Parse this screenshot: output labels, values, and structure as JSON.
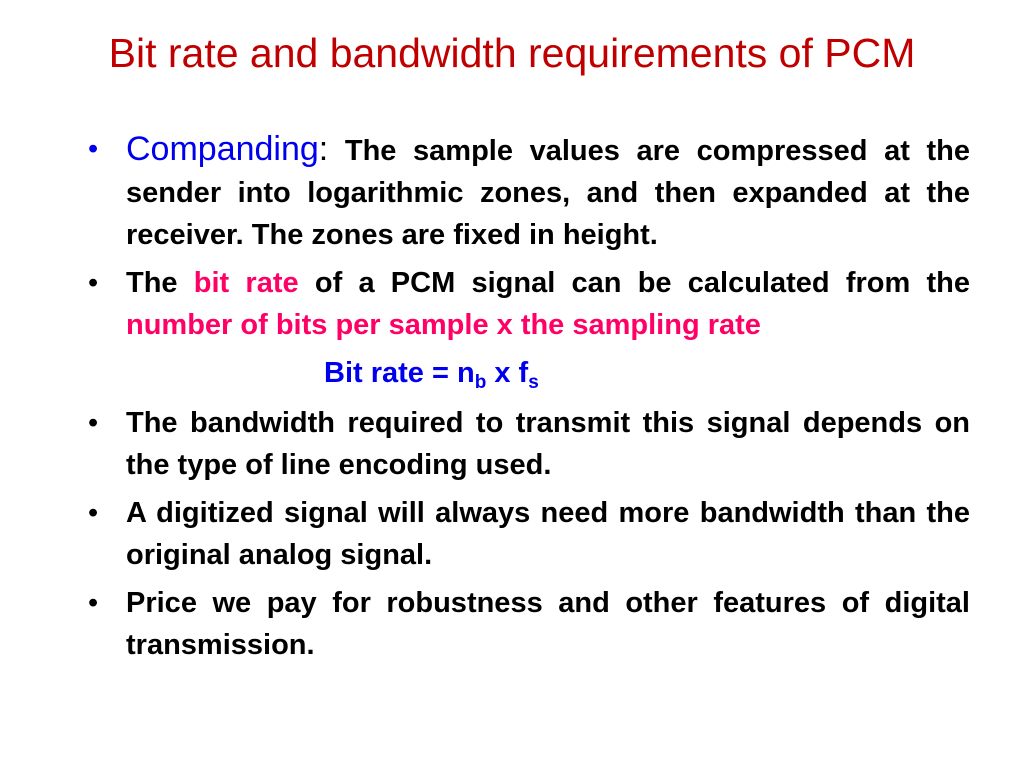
{
  "slide": {
    "title": "Bit rate and bandwidth requirements of PCM",
    "colors": {
      "title": "#c00000",
      "blue": "#0000ee",
      "pink": "#ff0066",
      "text": "#000000"
    },
    "bullet_glyph": "•",
    "items": [
      {
        "lead": "Companding",
        "colon": ":",
        "text": " The sample values are compressed at the sender into logarithmic zones, and then expanded at the receiver. The zones are fixed in height."
      },
      {
        "t1": "The ",
        "h1": "bit rate",
        "t2": " of a PCM signal can be calculated from the ",
        "h2": "number of bits per sample x the sampling rate"
      },
      {
        "text": "The bandwidth required to transmit this signal depends on the type of line encoding used."
      },
      {
        "text": "A digitized signal will always need more bandwidth than the original analog signal."
      },
      {
        "text": "Price we pay for robustness and other features of digital transmission."
      }
    ],
    "equation": {
      "lhs": "Bit rate = n",
      "sub1": "b",
      "mid": " x f",
      "sub2": "s"
    }
  }
}
